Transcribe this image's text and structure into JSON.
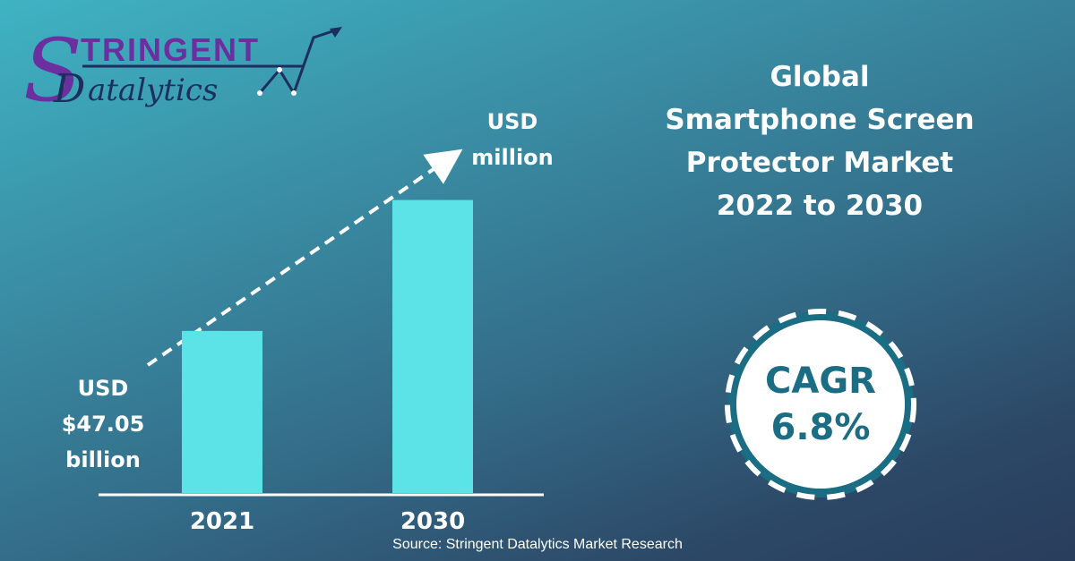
{
  "brand": {
    "logo_top": "TRINGENT",
    "logo_bottom": "atalytics",
    "colors": {
      "purple": "#6b2fa0",
      "navy": "#1c2f5e",
      "teal": "#3a9fb2"
    }
  },
  "title": {
    "line1": "Global",
    "line2": "Smartphone Screen",
    "line3": "Protector Market",
    "line4": "2022 to 2030"
  },
  "badge": {
    "label": "CAGR",
    "value": "6.8%",
    "text_color": "#1b6d84",
    "ring_color": "#1b6d84"
  },
  "chart_data": {
    "type": "bar",
    "categories": [
      "2021",
      "2030"
    ],
    "values": [
      47.05,
      85.05
    ],
    "ylim": [
      0,
      100
    ],
    "bar_color": "#5ce3e8",
    "start_annotation": {
      "line1": "USD",
      "line2": "$47.05",
      "line3": "billion"
    },
    "end_annotation": {
      "line1": "USD",
      "line2": "million"
    },
    "trend_arrow": "dashed"
  },
  "source": "Source: Stringent Datalytics Market Research"
}
